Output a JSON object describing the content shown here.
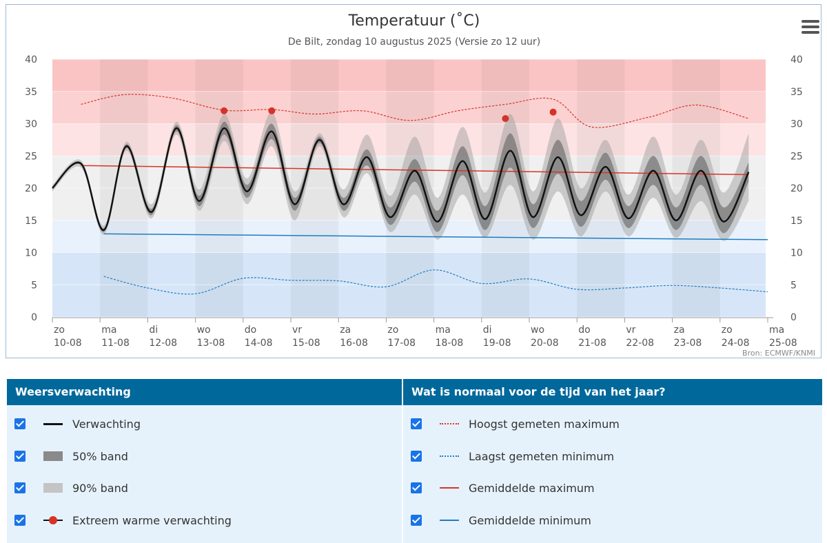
{
  "chart": {
    "title": "Temperatuur (˚C)",
    "subtitle": "De Bilt, zondag 10 augustus 2025 (Versie zo 12 uur)",
    "credit": "Bron: ECMWF/KNMI",
    "menu_icon": "hamburger-menu-icon"
  },
  "chart_data": {
    "type": "line",
    "title": "Temperatuur (˚C)",
    "ylim": [
      0,
      40
    ],
    "yticks": [
      0,
      5,
      10,
      15,
      20,
      25,
      30,
      35,
      40
    ],
    "xlim": [
      0,
      15
    ],
    "xticks": [
      {
        "day": "zo",
        "date": "10-08"
      },
      {
        "day": "ma",
        "date": "11-08"
      },
      {
        "day": "di",
        "date": "12-08"
      },
      {
        "day": "wo",
        "date": "13-08"
      },
      {
        "day": "do",
        "date": "14-08"
      },
      {
        "day": "vr",
        "date": "15-08"
      },
      {
        "day": "za",
        "date": "16-08"
      },
      {
        "day": "zo",
        "date": "17-08"
      },
      {
        "day": "ma",
        "date": "18-08"
      },
      {
        "day": "di",
        "date": "19-08"
      },
      {
        "day": "wo",
        "date": "20-08"
      },
      {
        "day": "do",
        "date": "21-08"
      },
      {
        "day": "vr",
        "date": "22-08"
      },
      {
        "day": "za",
        "date": "23-08"
      },
      {
        "day": "zo",
        "date": "24-08"
      },
      {
        "day": "ma",
        "date": "25-08"
      }
    ],
    "background_bands": [
      {
        "from": 0,
        "to": 10,
        "color": "#d6e6f8"
      },
      {
        "from": 10,
        "to": 15,
        "color": "#e9f2fc"
      },
      {
        "from": 15,
        "to": 25,
        "color": "#f0f0f0"
      },
      {
        "from": 25,
        "to": 30,
        "color": "#fde3e3"
      },
      {
        "from": 30,
        "to": 35,
        "color": "#fcd1d1"
      },
      {
        "from": 35,
        "to": 40,
        "color": "#fbc4c4"
      }
    ],
    "series": [
      {
        "name": "Verwachting",
        "color": "#111111",
        "x": [
          0.0,
          0.6,
          1.08,
          1.55,
          2.08,
          2.6,
          3.08,
          3.6,
          4.08,
          4.6,
          5.08,
          5.6,
          6.1,
          6.6,
          7.08,
          7.6,
          8.08,
          8.6,
          9.08,
          9.6,
          10.08,
          10.6,
          11.08,
          11.6,
          12.08,
          12.6,
          13.08,
          13.6,
          14.08,
          14.6
        ],
        "y": [
          20.0,
          23.8,
          13.5,
          26.5,
          16.3,
          29.3,
          18.0,
          29.3,
          19.5,
          28.8,
          17.5,
          27.5,
          17.5,
          24.8,
          15.5,
          22.7,
          14.8,
          24.2,
          15.2,
          25.8,
          15.5,
          24.8,
          15.8,
          23.3,
          15.3,
          22.7,
          15.0,
          22.7,
          14.8,
          22.5
        ]
      },
      {
        "name": "50% band",
        "color": "#7a7a7a",
        "x": [
          0.0,
          0.6,
          1.08,
          1.55,
          2.08,
          2.6,
          3.08,
          3.6,
          4.08,
          4.6,
          5.08,
          5.6,
          6.1,
          6.6,
          7.08,
          7.6,
          8.08,
          8.6,
          9.08,
          9.6,
          10.08,
          10.6,
          11.08,
          11.6,
          12.08,
          12.6,
          13.08,
          13.6,
          14.08,
          14.6
        ],
        "high": [
          20.2,
          24.0,
          13.8,
          26.8,
          16.8,
          29.8,
          18.8,
          30.3,
          20.5,
          30.0,
          18.5,
          28.0,
          18.5,
          26.0,
          17.0,
          24.5,
          16.5,
          26.5,
          17.2,
          28.5,
          17.5,
          27.5,
          18.0,
          25.5,
          17.2,
          25.0,
          17.0,
          25.0,
          17.0,
          24.0
        ],
        "low": [
          19.8,
          23.6,
          13.2,
          26.2,
          15.8,
          28.8,
          17.2,
          28.3,
          18.5,
          27.6,
          16.5,
          27.0,
          16.5,
          23.5,
          14.3,
          21.0,
          13.2,
          22.0,
          13.5,
          23.2,
          13.8,
          22.2,
          14.0,
          21.3,
          13.8,
          20.5,
          13.5,
          20.5,
          13.0,
          21.0
        ]
      },
      {
        "name": "90% band",
        "color": "#c4c4c4",
        "x": [
          0.0,
          0.6,
          1.08,
          1.55,
          2.08,
          2.6,
          3.08,
          3.6,
          4.08,
          4.6,
          5.08,
          5.6,
          6.1,
          6.6,
          7.08,
          7.6,
          8.08,
          8.6,
          9.08,
          9.6,
          10.08,
          10.6,
          11.08,
          11.6,
          12.08,
          12.6,
          13.08,
          13.6,
          14.08,
          14.6
        ],
        "high": [
          20.5,
          24.3,
          14.2,
          27.2,
          17.5,
          30.3,
          19.8,
          31.5,
          21.5,
          31.8,
          19.5,
          28.5,
          19.8,
          28.3,
          18.8,
          28.0,
          18.5,
          29.5,
          19.3,
          31.5,
          19.5,
          30.8,
          20.0,
          27.5,
          19.0,
          28.0,
          19.0,
          27.5,
          19.3,
          28.5
        ],
        "low": [
          19.5,
          23.2,
          12.8,
          25.8,
          15.3,
          28.3,
          16.5,
          27.3,
          17.5,
          26.5,
          15.0,
          26.5,
          15.5,
          22.3,
          13.2,
          19.0,
          12.0,
          19.0,
          12.3,
          20.5,
          12.0,
          19.5,
          12.5,
          19.5,
          12.5,
          18.5,
          12.3,
          18.0,
          11.8,
          18.0
        ]
      },
      {
        "name": "Extreem warme verwachting",
        "color": "#d63327",
        "x": [
          3.6,
          4.6,
          9.5,
          10.5
        ],
        "y": [
          32.0,
          32.0,
          30.8,
          31.8
        ]
      },
      {
        "name": "Hoogst gemeten maximum",
        "color": "#d63327",
        "x": [
          0.6,
          1.5,
          2.5,
          3.6,
          4.6,
          5.5,
          6.5,
          7.5,
          8.5,
          9.5,
          10.5,
          11.3,
          12.5,
          13.5,
          14.6
        ],
        "y": [
          33.0,
          34.5,
          34.0,
          32.1,
          32.2,
          31.5,
          32.0,
          30.5,
          32.0,
          33.0,
          33.8,
          29.5,
          31.0,
          32.9,
          30.8
        ]
      },
      {
        "name": "Laagst gemeten minimum",
        "color": "#1f7bbf",
        "x": [
          1.08,
          2.0,
          3.0,
          4.0,
          5.0,
          6.0,
          7.0,
          8.0,
          9.0,
          10.0,
          11.0,
          12.0,
          13.0,
          14.0,
          15.0
        ],
        "y": [
          6.3,
          4.5,
          3.6,
          6.0,
          5.7,
          5.6,
          4.7,
          7.3,
          5.2,
          5.9,
          4.3,
          4.5,
          4.9,
          4.5,
          3.9
        ]
      },
      {
        "name": "Gemiddelde maximum",
        "color": "#d63327",
        "x": [
          0.6,
          14.6
        ],
        "y": [
          23.5,
          22.1
        ]
      },
      {
        "name": "Gemiddelde minimum",
        "color": "#1f7bbf",
        "x": [
          1.08,
          15.0
        ],
        "y": [
          12.9,
          12.0
        ]
      }
    ]
  },
  "legend": {
    "left_header": "Weersverwachting",
    "right_header": "Wat is normaal voor de tijd van het jaar?",
    "left_items": [
      {
        "label": "Verwachting"
      },
      {
        "label": "50% band"
      },
      {
        "label": "90% band"
      },
      {
        "label": "Extreem warme verwachting"
      }
    ],
    "right_items": [
      {
        "label": "Hoogst gemeten maximum"
      },
      {
        "label": "Laagst gemeten minimum"
      },
      {
        "label": "Gemiddelde maximum"
      },
      {
        "label": "Gemiddelde minimum"
      }
    ]
  }
}
